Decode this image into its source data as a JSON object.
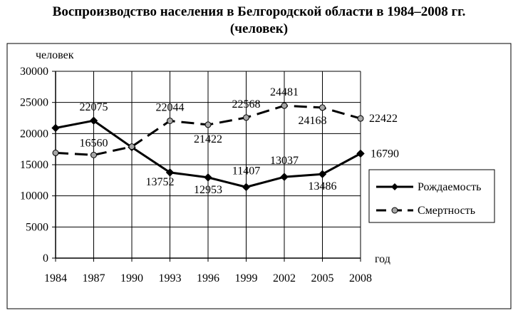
{
  "chart_data": {
    "type": "line",
    "title": "Воспроизводство населения в Белгородской области в 1984–2008 гг.",
    "subtitle": "(человек)",
    "xlabel": "год",
    "ylabel": "человек",
    "categories": [
      "1984",
      "1987",
      "1990",
      "1993",
      "1996",
      "1999",
      "2002",
      "2005",
      "2008"
    ],
    "y_ticks": [
      "0",
      "5000",
      "10000",
      "15000",
      "20000",
      "25000",
      "30000"
    ],
    "ylim": [
      0,
      30000
    ],
    "grid": "horizontal",
    "legend_position": "right",
    "series": [
      {
        "name": "Рождаемость",
        "style": "solid",
        "marker": "diamond",
        "color": "#000000",
        "values": [
          20900,
          22075,
          17800,
          13752,
          12953,
          11407,
          13037,
          13486,
          16790
        ],
        "labels": [
          "",
          "22075",
          "",
          "13752",
          "12953",
          "11407",
          "13037",
          "13486",
          "16790"
        ]
      },
      {
        "name": "Смертность",
        "style": "dashed",
        "marker": "circle",
        "color": "#000000",
        "marker_fill": "#a6a6a6",
        "values": [
          16900,
          16560,
          17900,
          22044,
          21422,
          22568,
          24481,
          24168,
          22422
        ],
        "labels": [
          "",
          "16560",
          "",
          "22044",
          "21422",
          "22568",
          "24481",
          "24168",
          "22422"
        ]
      }
    ]
  }
}
